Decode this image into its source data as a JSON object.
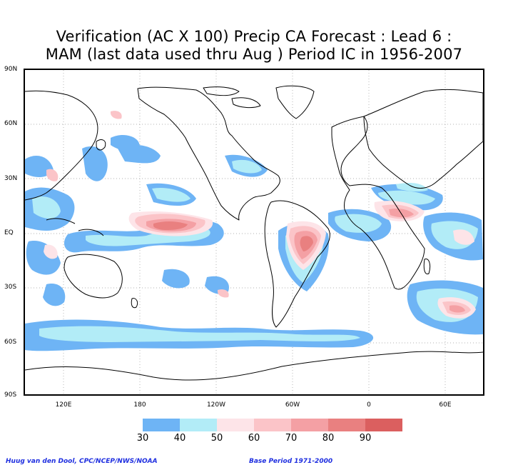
{
  "title": {
    "line1": "Verification (AC X 100) Precip CA Forecast : Lead 6 :",
    "line2": "MAM (last data used thru Aug ) Period IC in 1956-2007"
  },
  "axes": {
    "lat_labels": [
      "90N",
      "60N",
      "30N",
      "EQ",
      "30S",
      "60S",
      "90S"
    ],
    "lon_labels": [
      "120E",
      "180",
      "120W",
      "60W",
      "0",
      "60E"
    ]
  },
  "legend": {
    "labels": [
      "30",
      "40",
      "50",
      "60",
      "70",
      "80",
      "90"
    ],
    "colors": [
      "#6eb4f5",
      "#b2ecf7",
      "#fde4e8",
      "#fbc4c8",
      "#f4a0a4",
      "#e98080",
      "#db5f5f"
    ]
  },
  "footer": {
    "credit_left": "Huug van den Dool, CPC/NCEP/NWS/NOAA",
    "credit_right": "Base Period 1971-2000"
  },
  "colors": {
    "coast": "#000000",
    "grid": "#999999",
    "credit_text": "#1f2fe0"
  }
}
